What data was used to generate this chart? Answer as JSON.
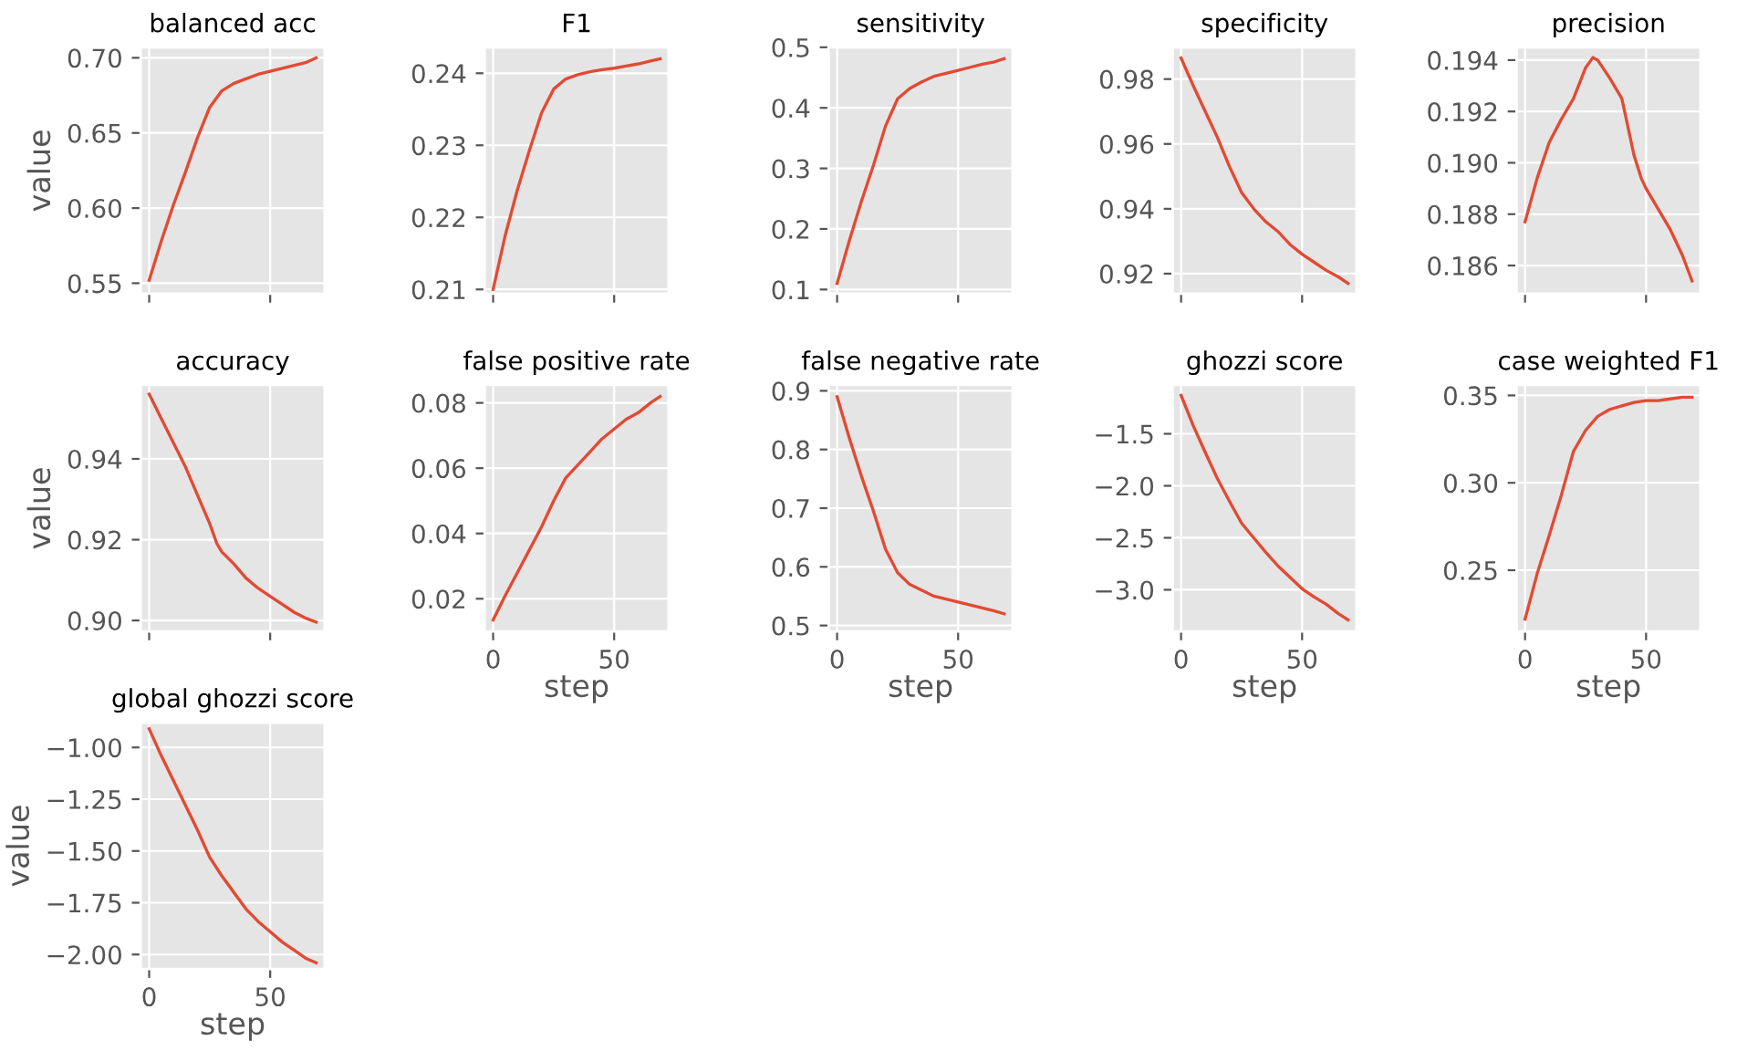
{
  "chart_data": [
    {
      "type": "line",
      "title": "balanced acc",
      "ylabel": "value",
      "x": [
        0,
        5,
        10,
        15,
        20,
        25,
        30,
        35,
        40,
        45,
        50,
        55,
        60,
        65,
        69
      ],
      "series": [
        {
          "color": "#e24a33",
          "values": [
            0.552,
            0.578,
            0.602,
            0.624,
            0.647,
            0.667,
            0.678,
            0.683,
            0.686,
            0.689,
            0.691,
            0.693,
            0.695,
            0.697,
            0.7
          ]
        }
      ],
      "xlim": [
        -3.5,
        72.5
      ],
      "xticks": [
        0,
        50
      ],
      "ylim": [
        0.543,
        0.707
      ],
      "yticks": [
        {
          "value": 0.55,
          "label": "0.55"
        },
        {
          "value": 0.6,
          "label": "0.60"
        },
        {
          "value": 0.65,
          "label": "0.65"
        },
        {
          "value": 0.7,
          "label": "0.70"
        }
      ],
      "grid": true,
      "tick_labels": "y"
    },
    {
      "type": "line",
      "title": "F1",
      "x": [
        0,
        5,
        10,
        15,
        20,
        25,
        30,
        35,
        40,
        45,
        50,
        55,
        60,
        65,
        69
      ],
      "series": [
        {
          "color": "#e24a33",
          "values": [
            0.21,
            0.2175,
            0.2238,
            0.2293,
            0.2345,
            0.2378,
            0.2392,
            0.2398,
            0.2402,
            0.2405,
            0.2407,
            0.241,
            0.2413,
            0.2417,
            0.242
          ]
        }
      ],
      "xlim": [
        -3.5,
        72.5
      ],
      "xticks": [
        0,
        50
      ],
      "ylim": [
        0.2094,
        0.2436
      ],
      "yticks": [
        0.21,
        0.22,
        0.23,
        0.24
      ],
      "grid": true,
      "tick_labels": "y"
    },
    {
      "type": "line",
      "title": "sensitivity",
      "x": [
        0,
        5,
        10,
        15,
        20,
        25,
        30,
        35,
        40,
        45,
        50,
        55,
        60,
        65,
        69
      ],
      "series": [
        {
          "color": "#e24a33",
          "values": [
            0.11,
            0.18,
            0.245,
            0.305,
            0.37,
            0.415,
            0.432,
            0.443,
            0.452,
            0.457,
            0.462,
            0.467,
            0.472,
            0.476,
            0.481
          ]
        }
      ],
      "xlim": [
        -3.5,
        72.5
      ],
      "xticks": [
        0,
        50
      ],
      "ylim": [
        0.093,
        0.5
      ],
      "yticks": [
        0.1,
        0.2,
        0.3,
        0.4,
        0.5
      ],
      "grid": true,
      "tick_labels": "y"
    },
    {
      "type": "line",
      "title": "specificity",
      "x": [
        0,
        5,
        10,
        15,
        20,
        25,
        30,
        35,
        40,
        45,
        50,
        55,
        60,
        65,
        69
      ],
      "series": [
        {
          "color": "#e24a33",
          "values": [
            0.9865,
            0.978,
            0.97,
            0.962,
            0.953,
            0.945,
            0.94,
            0.936,
            0.933,
            0.929,
            0.926,
            0.9235,
            0.921,
            0.919,
            0.917
          ]
        }
      ],
      "xlim": [
        -3.5,
        72.5
      ],
      "xticks": [
        0,
        50
      ],
      "ylim": [
        0.9138,
        0.9898
      ],
      "yticks": [
        0.92,
        0.94,
        0.96,
        0.98
      ],
      "grid": true,
      "tick_labels": "y"
    },
    {
      "type": "line",
      "title": "precision",
      "x": [
        0,
        5,
        10,
        15,
        20,
        25,
        28,
        30,
        35,
        40,
        45,
        48,
        50,
        55,
        60,
        65,
        69
      ],
      "series": [
        {
          "color": "#e24a33",
          "values": [
            0.1877,
            0.1894,
            0.1908,
            0.1917,
            0.1925,
            0.1937,
            0.1941,
            0.194,
            0.1933,
            0.1925,
            0.1903,
            0.1894,
            0.189,
            0.1882,
            0.1874,
            0.1864,
            0.1854
          ]
        }
      ],
      "xlim": [
        -3.5,
        72.5
      ],
      "xticks": [
        0,
        50
      ],
      "ylim": [
        0.1849,
        0.1945
      ],
      "yticks": [
        0.186,
        0.188,
        {
          "value": 0.19,
          "label": "0.190"
        },
        0.192,
        0.194
      ],
      "grid": true,
      "tick_labels": "y"
    },
    {
      "type": "line",
      "title": "accuracy",
      "ylabel": "value",
      "x": [
        0,
        5,
        10,
        15,
        20,
        25,
        28,
        30,
        35,
        40,
        45,
        50,
        55,
        60,
        65,
        69
      ],
      "series": [
        {
          "color": "#e24a33",
          "values": [
            0.956,
            0.95,
            0.944,
            0.938,
            0.931,
            0.924,
            0.919,
            0.917,
            0.914,
            0.9105,
            0.908,
            0.906,
            0.904,
            0.902,
            0.9005,
            0.8996
          ]
        }
      ],
      "xlim": [
        -3.5,
        72.5
      ],
      "xticks": [
        0,
        50
      ],
      "ylim": [
        0.8973,
        0.9583
      ],
      "yticks": [
        {
          "value": 0.9,
          "label": "0.90"
        },
        {
          "value": 0.92,
          "label": "0.92"
        },
        {
          "value": 0.94,
          "label": "0.94"
        }
      ],
      "grid": true,
      "tick_labels": "y"
    },
    {
      "type": "line",
      "title": "false positive rate",
      "xlabel": "step",
      "x": [
        0,
        5,
        10,
        15,
        20,
        25,
        30,
        35,
        40,
        45,
        50,
        55,
        60,
        65,
        69
      ],
      "series": [
        {
          "color": "#e24a33",
          "values": [
            0.0135,
            0.021,
            0.028,
            0.035,
            0.042,
            0.05,
            0.057,
            0.061,
            0.065,
            0.069,
            0.072,
            0.075,
            0.077,
            0.08,
            0.082
          ]
        }
      ],
      "xlim": [
        -3.5,
        72.5
      ],
      "xticks": [
        0,
        50
      ],
      "ylim": [
        0.01,
        0.0855
      ],
      "yticks": [
        0.02,
        0.04,
        0.06,
        0.08
      ],
      "grid": true
    },
    {
      "type": "line",
      "title": "false negative rate",
      "xlabel": "step",
      "x": [
        0,
        5,
        10,
        15,
        20,
        25,
        30,
        35,
        40,
        45,
        50,
        55,
        60,
        65,
        69
      ],
      "series": [
        {
          "color": "#e24a33",
          "values": [
            0.89,
            0.82,
            0.755,
            0.695,
            0.63,
            0.59,
            0.57,
            0.56,
            0.55,
            0.545,
            0.54,
            0.535,
            0.53,
            0.525,
            0.52
          ]
        }
      ],
      "xlim": [
        -3.5,
        72.5
      ],
      "xticks": [
        0,
        50
      ],
      "ylim": [
        0.49,
        0.91
      ],
      "yticks": [
        0.5,
        0.6,
        0.7,
        0.8,
        0.9
      ],
      "grid": true
    },
    {
      "type": "line",
      "title": "ghozzi score",
      "xlabel": "step",
      "x": [
        0,
        5,
        10,
        15,
        20,
        25,
        30,
        35,
        40,
        45,
        50,
        55,
        60,
        65,
        69
      ],
      "series": [
        {
          "color": "#e24a33",
          "values": [
            -1.13,
            -1.42,
            -1.68,
            -1.93,
            -2.15,
            -2.36,
            -2.5,
            -2.64,
            -2.77,
            -2.88,
            -2.99,
            -3.07,
            -3.14,
            -3.23,
            -3.29
          ]
        }
      ],
      "xlim": [
        -3.5,
        72.5
      ],
      "xticks": [
        0,
        50
      ],
      "ylim": [
        -3.4,
        -1.03
      ],
      "yticks": [
        {
          "value": -3.0,
          "label": "−3.0"
        },
        {
          "value": -2.5,
          "label": "−2.5"
        },
        {
          "value": -2.0,
          "label": "−2.0"
        },
        {
          "value": -1.5,
          "label": "−1.5"
        }
      ],
      "grid": true
    },
    {
      "type": "line",
      "title": "case weighted F1",
      "xlabel": "step",
      "x": [
        0,
        5,
        10,
        15,
        20,
        25,
        30,
        35,
        40,
        45,
        50,
        55,
        60,
        65,
        69
      ],
      "series": [
        {
          "color": "#e24a33",
          "values": [
            0.222,
            0.248,
            0.27,
            0.293,
            0.318,
            0.33,
            0.338,
            0.342,
            0.344,
            0.346,
            0.347,
            0.347,
            0.348,
            0.349,
            0.349
          ]
        }
      ],
      "xlim": [
        -3.5,
        72.5
      ],
      "xticks": [
        0,
        50
      ],
      "ylim": [
        0.215,
        0.356
      ],
      "yticks": [
        0.25,
        {
          "value": 0.3,
          "label": "0.30"
        },
        0.35
      ],
      "grid": true
    },
    {
      "type": "line",
      "title": "global ghozzi score",
      "xlabel": "step",
      "ylabel": "value",
      "x": [
        0,
        5,
        10,
        15,
        20,
        25,
        30,
        35,
        40,
        45,
        50,
        55,
        60,
        65,
        69
      ],
      "series": [
        {
          "color": "#e24a33",
          "values": [
            -0.91,
            -1.04,
            -1.16,
            -1.28,
            -1.4,
            -1.53,
            -1.62,
            -1.7,
            -1.78,
            -1.84,
            -1.89,
            -1.94,
            -1.98,
            -2.02,
            -2.04
          ]
        }
      ],
      "xlim": [
        -3.5,
        72.5
      ],
      "xticks": [
        0,
        50
      ],
      "ylim": [
        -2.07,
        -0.88
      ],
      "yticks": [
        {
          "value": -2.0,
          "label": "−2.00"
        },
        {
          "value": -1.75,
          "label": "−1.75"
        },
        {
          "value": -1.5,
          "label": "−1.50"
        },
        {
          "value": -1.25,
          "label": "−1.25"
        },
        {
          "value": -1.0,
          "label": "−1.00"
        }
      ],
      "grid": true
    }
  ]
}
